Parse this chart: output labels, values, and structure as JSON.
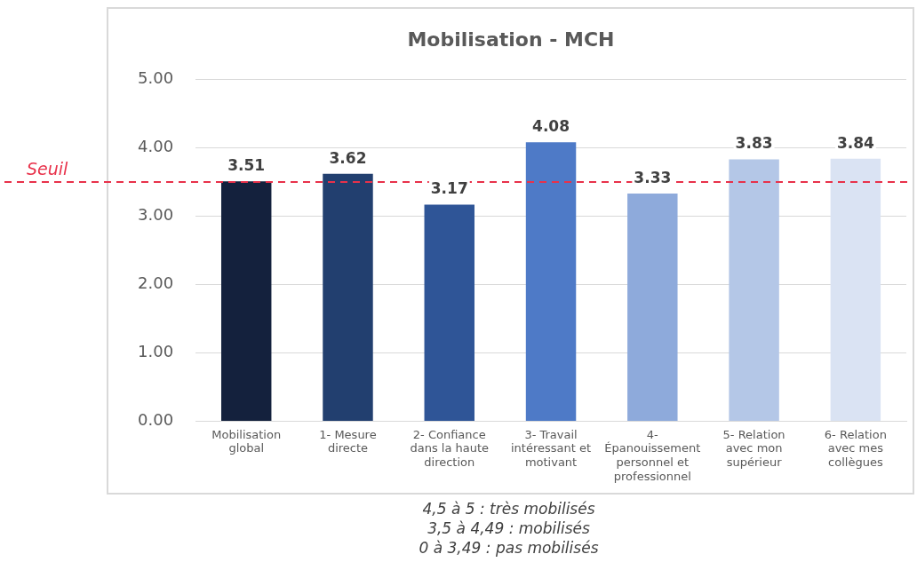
{
  "chart_data": {
    "type": "bar",
    "title": "Mobilisation - MCH",
    "categories": [
      "Mobilisation global",
      "1- Mesure directe",
      "2- Confiance dans la haute direction",
      "3- Travail intéressant et motivant",
      "4- Épanouissement personnel et professionnel",
      "5- Relation avec mon supérieur",
      "6- Relation avec mes collègues"
    ],
    "values": [
      3.51,
      3.62,
      3.17,
      4.08,
      3.33,
      3.83,
      3.84
    ],
    "colors": [
      "#14213d",
      "#223f6f",
      "#2f5597",
      "#4e7ac7",
      "#8eaadb",
      "#b4c7e7",
      "#dae3f3"
    ],
    "ylim": [
      0,
      5
    ],
    "yticks": [
      {
        "value": 0,
        "label": "0.00"
      },
      {
        "value": 1,
        "label": "1.00"
      },
      {
        "value": 2,
        "label": "2.00"
      },
      {
        "value": 3,
        "label": "3.00"
      },
      {
        "value": 4,
        "label": "4.00"
      },
      {
        "value": 5,
        "label": "5.00"
      }
    ],
    "grid": "y",
    "legend": false,
    "data_labels": true,
    "ref_lines": [
      {
        "axis": "y",
        "value": 3.5,
        "label": "Seuil",
        "color": "#e8314a",
        "line_style": "dashed"
      }
    ],
    "annotations": [
      "4,5 à 5 : très mobilisés",
      "3,5 à 4,49 : mobilisés",
      "0 à 3,49 : pas mobilisés"
    ]
  }
}
